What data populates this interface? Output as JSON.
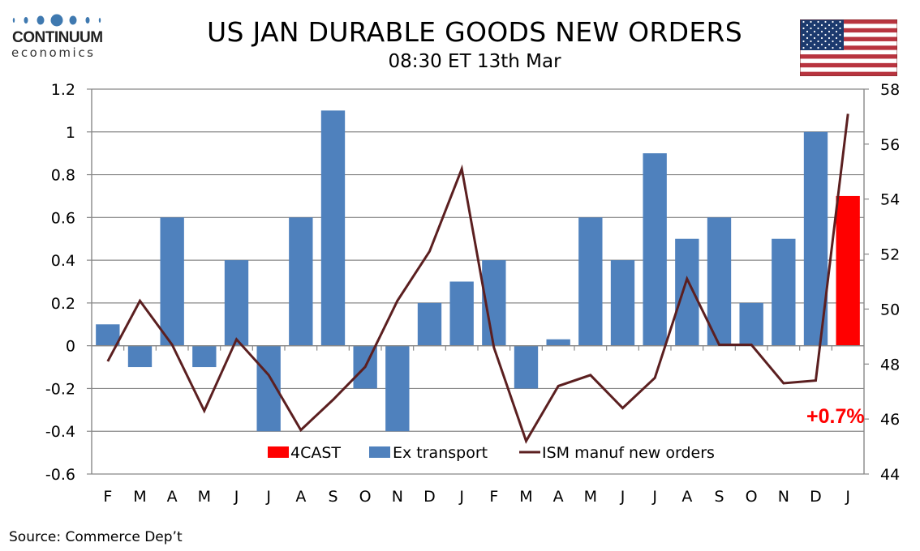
{
  "header": {
    "logo_text": "CONTINUUM",
    "logo_subtext": "economics",
    "title": "US JAN DURABLE GOODS NEW ORDERS",
    "subtitle": "08:30 ET 13th Mar",
    "flag_icon": "us-flag-icon"
  },
  "footer": {
    "source": "Source: Commerce Dep’t"
  },
  "colors": {
    "bar": "#4f81bd",
    "forecast": "#ff0000",
    "line": "#5b1f20",
    "grid": "#888888",
    "callout": "#ff0000"
  },
  "chart_data": {
    "type": "bar",
    "title": "US JAN DURABLE GOODS NEW ORDERS",
    "subtitle": "08:30 ET 13th Mar",
    "categories": [
      "F",
      "M",
      "A",
      "M",
      "J",
      "J",
      "A",
      "S",
      "O",
      "N",
      "D",
      "J",
      "F",
      "M",
      "A",
      "M",
      "J",
      "J",
      "A",
      "S",
      "O",
      "N",
      "D",
      "J"
    ],
    "series": [
      {
        "name": "Ex transport",
        "type": "bar",
        "axis": "left",
        "values": [
          0.1,
          -0.1,
          0.6,
          -0.1,
          0.4,
          -0.4,
          0.6,
          1.1,
          -0.2,
          -0.4,
          0.2,
          0.3,
          0.4,
          -0.2,
          0.03,
          0.6,
          0.4,
          0.9,
          0.5,
          0.6,
          0.2,
          0.5,
          1.0,
          null
        ]
      },
      {
        "name": "4CAST",
        "type": "bar",
        "axis": "left",
        "values": [
          null,
          null,
          null,
          null,
          null,
          null,
          null,
          null,
          null,
          null,
          null,
          null,
          null,
          null,
          null,
          null,
          null,
          null,
          null,
          null,
          null,
          null,
          null,
          0.7
        ]
      },
      {
        "name": "ISM manuf new orders",
        "type": "line",
        "axis": "right",
        "values": [
          48.1,
          50.3,
          48.7,
          46.3,
          48.9,
          47.6,
          45.6,
          46.7,
          47.9,
          50.3,
          52.1,
          55.1,
          48.6,
          45.2,
          47.2,
          47.6,
          46.4,
          47.5,
          51.1,
          48.7,
          48.7,
          47.3,
          47.4,
          57.1
        ]
      }
    ],
    "ylim": [
      -0.6,
      1.2
    ],
    "yticks": [
      "1.2",
      "1",
      "0.8",
      "0.6",
      "0.4",
      "0.2",
      "0",
      "-0.2",
      "-0.4",
      "-0.6"
    ],
    "ytick_values": [
      1.2,
      1.0,
      0.8,
      0.6,
      0.4,
      0.2,
      0,
      -0.2,
      -0.4,
      -0.6
    ],
    "y2lim": [
      44,
      58
    ],
    "y2ticks": [
      "58",
      "56",
      "54",
      "52",
      "50",
      "48",
      "46",
      "44"
    ],
    "y2tick_values": [
      58,
      56,
      54,
      52,
      50,
      48,
      46,
      44
    ],
    "legend": [
      "4CAST",
      "Ex transport",
      "ISM manuf new orders"
    ],
    "legend_position": "bottom-inside",
    "annotation": "+0.7%",
    "grid": true,
    "xlabel": "",
    "ylabel": "",
    "y2label": ""
  }
}
